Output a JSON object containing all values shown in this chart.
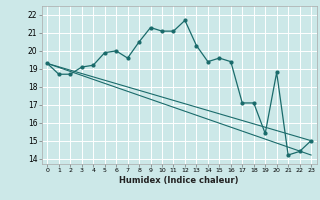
{
  "xlabel": "Humidex (Indice chaleur)",
  "background_color": "#cce8e8",
  "grid_color": "#ffffff",
  "line_color": "#1a6b6b",
  "xlim": [
    -0.5,
    23.5
  ],
  "ylim": [
    13.7,
    22.5
  ],
  "xticks": [
    0,
    1,
    2,
    3,
    4,
    5,
    6,
    7,
    8,
    9,
    10,
    11,
    12,
    13,
    14,
    15,
    16,
    17,
    18,
    19,
    20,
    21,
    22,
    23
  ],
  "yticks": [
    14,
    15,
    16,
    17,
    18,
    19,
    20,
    21,
    22
  ],
  "main_line": [
    [
      0,
      19.3
    ],
    [
      1,
      18.7
    ],
    [
      2,
      18.7
    ],
    [
      3,
      19.1
    ],
    [
      4,
      19.2
    ],
    [
      5,
      19.9
    ],
    [
      6,
      20.0
    ],
    [
      7,
      19.6
    ],
    [
      8,
      20.5
    ],
    [
      9,
      21.3
    ],
    [
      10,
      21.1
    ],
    [
      11,
      21.1
    ],
    [
      12,
      21.7
    ],
    [
      13,
      20.3
    ],
    [
      14,
      19.4
    ],
    [
      15,
      19.6
    ],
    [
      16,
      19.4
    ],
    [
      17,
      17.1
    ],
    [
      18,
      17.1
    ],
    [
      19,
      15.4
    ],
    [
      20,
      18.8
    ],
    [
      21,
      14.2
    ],
    [
      22,
      14.4
    ],
    [
      23,
      15.0
    ]
  ],
  "line2_x": [
    0,
    23
  ],
  "line2_y": [
    19.3,
    15.0
  ],
  "line3_x": [
    0,
    23
  ],
  "line3_y": [
    19.3,
    14.2
  ]
}
